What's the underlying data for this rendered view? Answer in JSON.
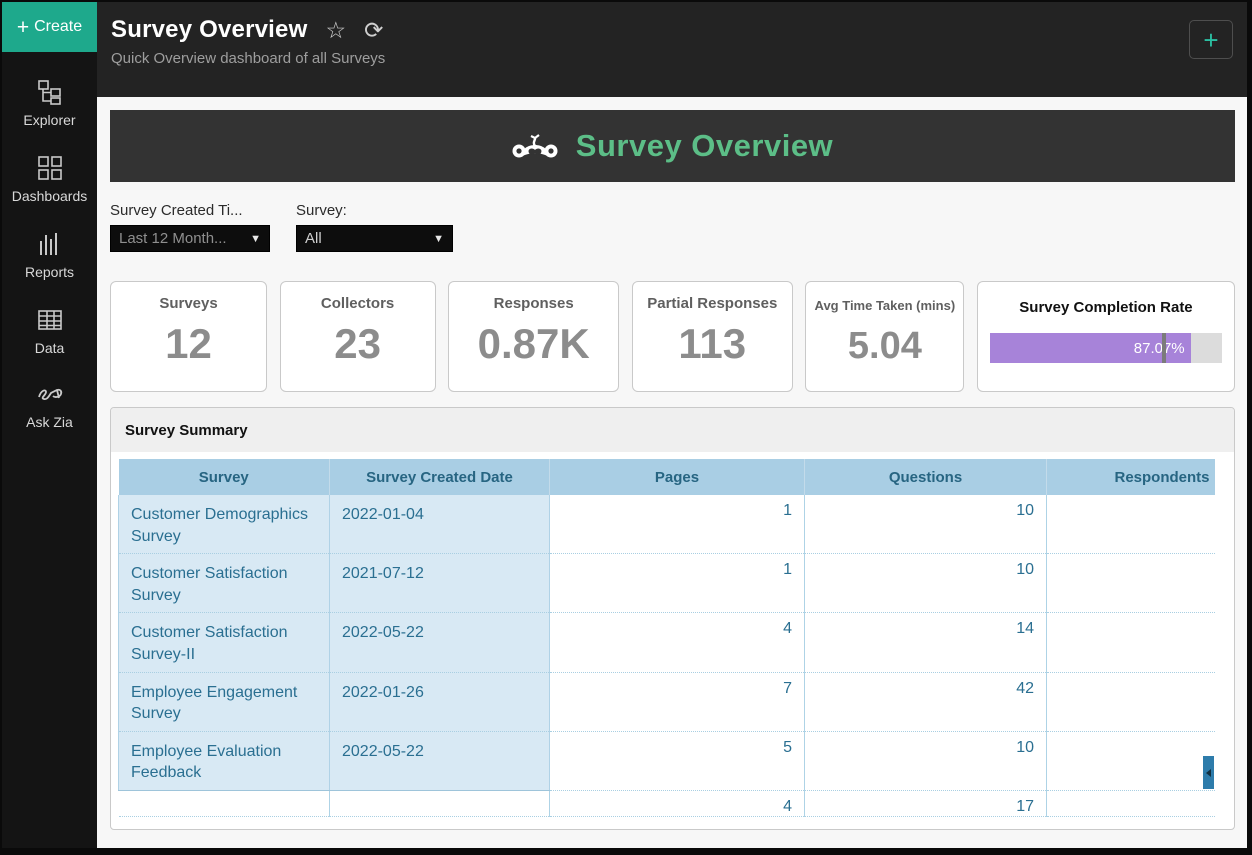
{
  "sidebar": {
    "create_label": "Create",
    "items": [
      {
        "icon": "explorer-icon",
        "label": "Explorer"
      },
      {
        "icon": "dashboards-icon",
        "label": "Dashboards"
      },
      {
        "icon": "reports-icon",
        "label": "Reports"
      },
      {
        "icon": "data-icon",
        "label": "Data"
      },
      {
        "icon": "ask-zia-icon",
        "label": "Ask Zia"
      }
    ]
  },
  "header": {
    "title": "Survey Overview",
    "subtitle": "Quick Overview dashboard of all Surveys",
    "add_label": "+"
  },
  "banner": {
    "title": "Survey Overview"
  },
  "filters": {
    "time": {
      "label": "Survey Created Ti...",
      "value": "Last 12 Month...",
      "caret": "▼"
    },
    "survey": {
      "label": "Survey:",
      "value": "All",
      "caret": "▼"
    }
  },
  "kpis": [
    {
      "label": "Surveys",
      "value": "12"
    },
    {
      "label": "Collectors",
      "value": "23"
    },
    {
      "label": "Responses",
      "value": "0.87K"
    },
    {
      "label": "Partial Responses",
      "value": "113"
    },
    {
      "label": "Avg Time Taken (mins)",
      "value": "5.04"
    }
  ],
  "completion": {
    "label": "Survey Completion Rate",
    "value": "87.07%",
    "fill_percent": 86.5,
    "marker_percent": 74,
    "bar_color": "#a783d9",
    "track_color": "#dcdcdc"
  },
  "summary": {
    "title": "Survey Summary",
    "columns": [
      "Survey",
      "Survey Created Date",
      "Pages",
      "Questions",
      "Respondents"
    ],
    "rows": [
      {
        "survey": "Customer Demographics Survey",
        "created": "2022-01-04",
        "pages": "1",
        "questions": "10",
        "respondents": ""
      },
      {
        "survey": "Customer Satisfaction Survey",
        "created": "2021-07-12",
        "pages": "1",
        "questions": "10",
        "respondents": ""
      },
      {
        "survey": "Customer Satisfaction Survey-II",
        "created": "2022-05-22",
        "pages": "4",
        "questions": "14",
        "respondents": ""
      },
      {
        "survey": "Employee Engagement Survey",
        "created": "2022-01-26",
        "pages": "7",
        "questions": "42",
        "respondents": ""
      },
      {
        "survey": "Employee Evaluation Feedback",
        "created": "2022-05-22",
        "pages": "5",
        "questions": "10",
        "respondents": ""
      },
      {
        "survey": "",
        "created": "",
        "pages": "4",
        "questions": "17",
        "respondents": ""
      }
    ]
  }
}
